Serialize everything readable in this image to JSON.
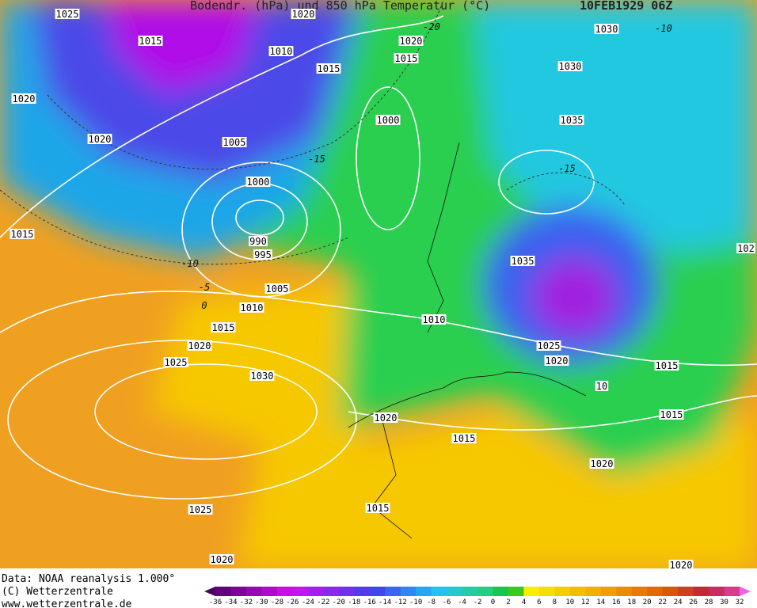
{
  "header": {
    "title": "Bodendr. (hPa) und 850 hPa Temperatur (°C)",
    "date": "10FEB1929 06Z"
  },
  "isobar_labels": [
    "1025",
    "1020",
    "1015",
    "1010",
    "1015",
    "1020",
    "1015",
    "1030",
    "1030",
    "1020",
    "1000",
    "1035",
    "1020",
    "1005",
    "1000",
    "1015",
    "990",
    "995",
    "1035",
    "102",
    "1005",
    "1010",
    "1010",
    "1015",
    "1020",
    "1025",
    "1020",
    "1015",
    "1025",
    "10",
    "1030",
    "1020",
    "1015",
    "1015",
    "1020",
    "1015",
    "1025",
    "1020",
    "1020"
  ],
  "isotherm_labels": [
    "-20",
    "-10",
    "-15",
    "-15",
    "-10",
    "-5",
    "0"
  ],
  "credits": [
    "Data: NOAA reanalysis 1.000°",
    "(C) Wetterzentrale",
    "www.wetterzentrale.de"
  ],
  "colorbar": {
    "labels": [
      -36,
      -34,
      -32,
      -30,
      -28,
      -26,
      -24,
      -22,
      -20,
      -18,
      -16,
      -14,
      -12,
      -10,
      -8,
      -6,
      -4,
      -2,
      0,
      2,
      4,
      6,
      8,
      10,
      12,
      14,
      16,
      18,
      20,
      22,
      24,
      26,
      28,
      30,
      32
    ]
  }
}
